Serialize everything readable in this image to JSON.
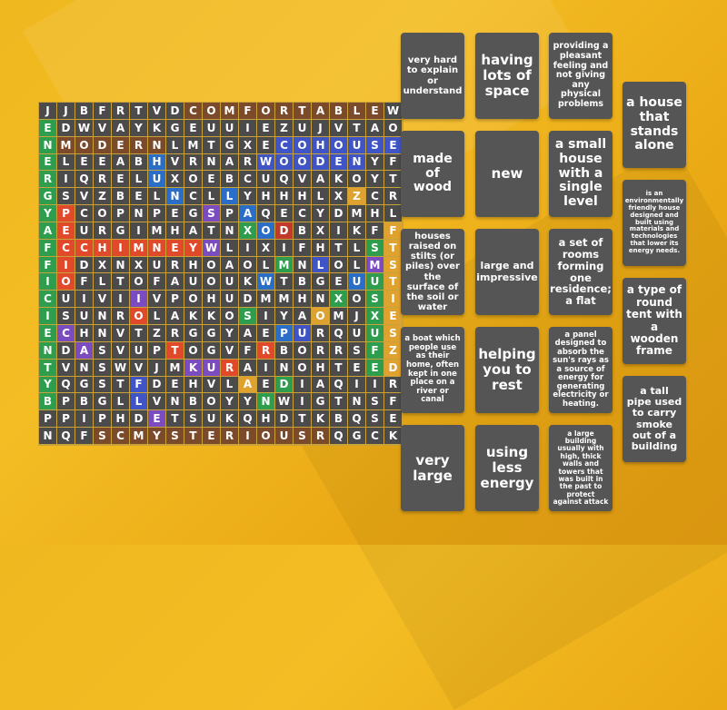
{
  "colors": {
    "grid_bg": "#4b4b4b",
    "grid_line": "#c9a23a",
    "card_bg": "#555555",
    "highlight_palette": [
      "#2e9e4e",
      "#7a4a2a",
      "#3f55c5",
      "#e0a22f",
      "#e04a2a",
      "#2a6ec8",
      "#7b4bc0",
      "#c0392b"
    ]
  },
  "grid": {
    "rows": [
      "JJBFRTVDCOMFORTABLEW",
      "EDWVAYKGEUUIEZUJVTAO",
      "NMODERNLMTGXECOHOUSE",
      "ELEEABHVRNARWOODENYF",
      "RIQRELUXOEBCUQVAKOYT",
      "GSVZBELNCLLYHHHLXZCR",
      "YPCOPNPEGSPAQECYDMHL",
      "AEURGIMHATNXODBXIKFF",
      "FCCHIMNEYWLIXIFHTLST",
      "FIDXNXURHOAOLMNLOLMS",
      "IOFLTOFAUOUKWTBGEUUT",
      "CUIVIIVPOHUDMMHNXOSI",
      "ISUNROLAKKOSIYAOMJXE",
      "ECHNVTZRGGYAEPURQUUS",
      "NDASVUPTOGVFRBORRSFZ",
      "TVNSWVJMKURAINOHTEED",
      "YQGSTFDEHVLAEDIAQIIR",
      "BPBGLLVNBOYYNWIGTNSF",
      "PPIPHDETSUKQHDTKBQSE",
      "NQFSCMYSTERIOUSRQGCK"
    ]
  },
  "cards": [
    {
      "text": "very hard to explain or understand"
    },
    {
      "text": "having lots of space"
    },
    {
      "text": "providing a pleasant feeling and not giving any physical problems"
    },
    {
      "text": "a house that stands alone"
    },
    {
      "text": "made of wood"
    },
    {
      "text": "new"
    },
    {
      "text": "a small house with a single level"
    },
    {
      "text": "is an environmentally friendly house designed and built using materials and technologies that lower its energy needs."
    },
    {
      "text": "houses raised on stilts (or piles) over the surface of the soil or water"
    },
    {
      "text": "large and impressive"
    },
    {
      "text": "a set of rooms forming one residence; a flat"
    },
    {
      "text": "a type of round tent with a wooden frame"
    },
    {
      "text": "a boat which people use as their home, often kept in one place on a river or canal"
    },
    {
      "text": "helping you to rest"
    },
    {
      "text": "a panel designed to absorb the sun's rays as a source of energy for generating electricity or heating."
    },
    {
      "text": "a tall pipe used to carry smoke out of a building"
    },
    {
      "text": "very large"
    },
    {
      "text": "using less energy"
    },
    {
      "text": "a large building usually with high, thick walls and towers that was built in the past to protect against attack"
    }
  ]
}
